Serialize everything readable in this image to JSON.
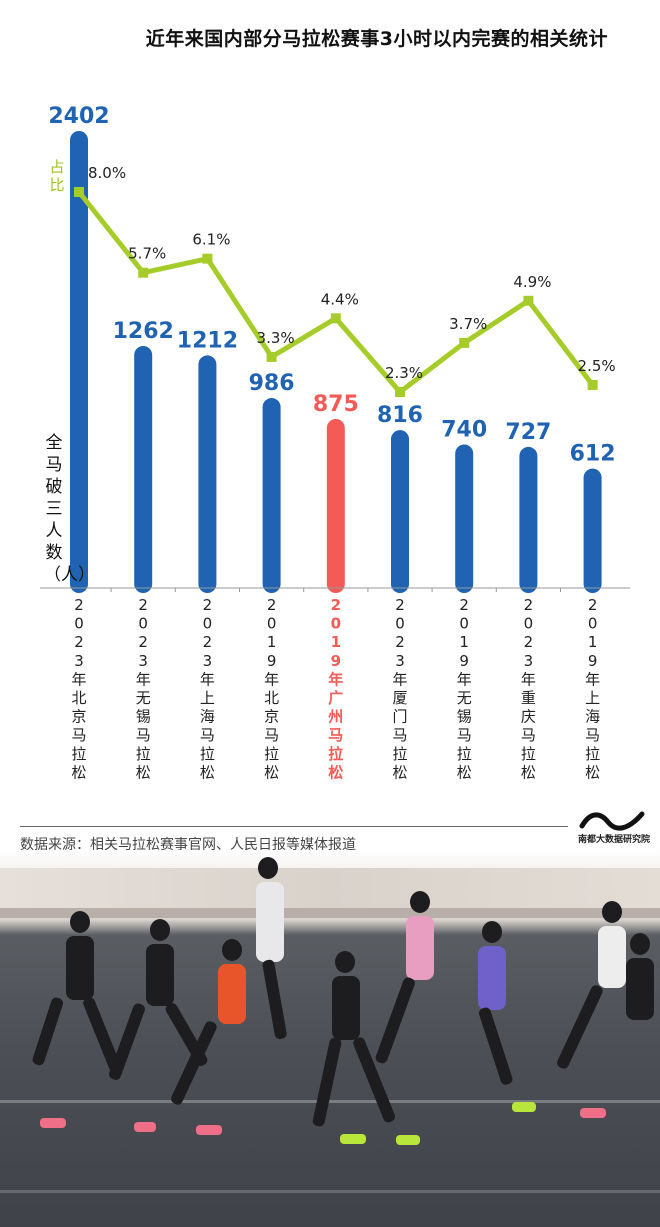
{
  "title": "近年来国内部分马拉松赛事3小时以内完赛的相关统计",
  "legend": {
    "ratio_label": "占比",
    "count_label": "全马破三人数（人）"
  },
  "source": "数据来源：相关马拉松赛事官网、人民日报等媒体报道",
  "logo_text": "南都大数据研究院",
  "colors": {
    "bar": "#1f63b2",
    "bar_highlight": "#f45b57",
    "line": "#a6cc2a",
    "label_blue": "#1f63b2",
    "label_highlight": "#f45b57"
  },
  "chart_data": {
    "type": "bar",
    "categories": [
      "2023年北京马拉松",
      "2023年无锡马拉松",
      "2023年上海马拉松",
      "2019年北京马拉松",
      "2019年广州马拉松",
      "2023年厦门马拉松",
      "2019年无锡马拉松",
      "2023年重庆马拉松",
      "2019年上海马拉松"
    ],
    "highlight_index": 4,
    "series": [
      {
        "name": "全马破三人数（人）",
        "type": "bar",
        "values": [
          2402,
          1262,
          1212,
          986,
          875,
          816,
          740,
          727,
          612
        ],
        "labels": [
          "2402",
          "1262",
          "1212",
          "986",
          "875",
          "816",
          "740",
          "727",
          "612"
        ]
      },
      {
        "name": "占比",
        "type": "line",
        "values": [
          8.0,
          5.7,
          6.1,
          3.3,
          4.4,
          2.3,
          3.7,
          4.9,
          2.5
        ],
        "labels": [
          "8.0%",
          "5.7%",
          "6.1%",
          "3.3%",
          "4.4%",
          "2.3%",
          "3.7%",
          "4.9%",
          "2.5%"
        ]
      }
    ],
    "ylim_bar": [
      0,
      2402
    ],
    "ylim_line": [
      2.3,
      8.0
    ]
  }
}
